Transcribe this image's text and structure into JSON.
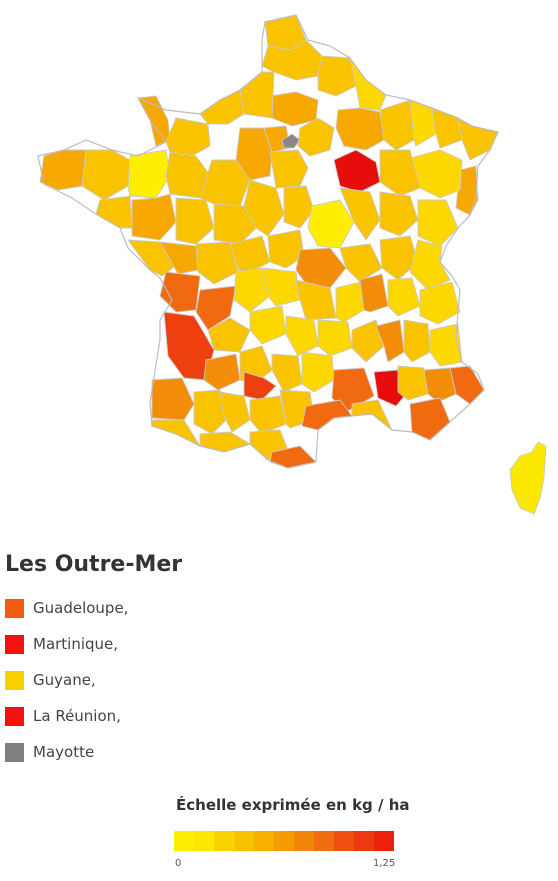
{
  "map": {
    "region": "France",
    "fill_colors": {
      "c1": "#ffee00",
      "c2": "#fcd800",
      "c3": "#f9c300",
      "c4": "#f7a800",
      "c5": "#f38d08",
      "c6": "#f16a0f",
      "c7": "#ee3f0f",
      "c8": "#e80d0d",
      "paris": "#888888"
    }
  },
  "outremer": {
    "title": "Les Outre-Mer",
    "items": [
      {
        "label": "Guadeloupe,",
        "color": "#f25a11"
      },
      {
        "label": "Martinique,",
        "color": "#f4110f"
      },
      {
        "label": "Guyane,",
        "color": "#f9cf00"
      },
      {
        "label": "La Réunion,",
        "color": "#f4110f"
      },
      {
        "label": "Mayotte",
        "color": "#7f7f7f"
      }
    ]
  },
  "scale": {
    "title": "Échelle exprimée en kg / ha",
    "min_label": "0",
    "max_label": "1,25",
    "colors": [
      "#ffee00",
      "#fde600",
      "#fbd300",
      "#f9c200",
      "#f7b000",
      "#f59c04",
      "#f3860a",
      "#f16c0f",
      "#ef5010",
      "#ee380f",
      "#ec200e"
    ]
  }
}
